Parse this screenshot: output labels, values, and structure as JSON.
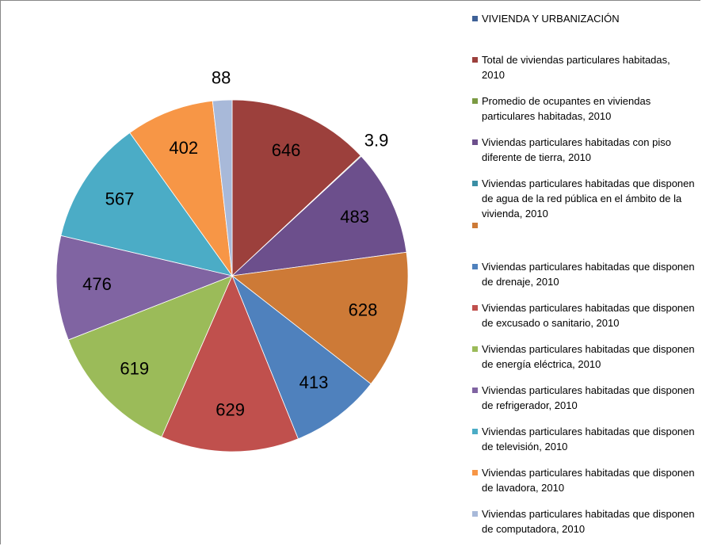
{
  "chart_data": {
    "type": "pie",
    "categories": [
      "VIVIENDA Y URBANIZACIÓN",
      "Total de viviendas particulares habitadas, 2010",
      "Promedio de ocupantes en viviendas particulares habitadas, 2010",
      "Viviendas particulares habitadas con piso diferente de tierra, 2010",
      "Viviendas particulares habitadas que disponen de agua de la red pública en el ámbito de la vivienda, 2010",
      null,
      "Viviendas particulares habitadas que disponen de drenaje, 2010",
      "Viviendas particulares habitadas que disponen de excusado o sanitario, 2010",
      "Viviendas particulares habitadas que disponen de energía eléctrica, 2010",
      "Viviendas particulares habitadas que disponen de refrigerador, 2010",
      "Viviendas particulares habitadas que disponen de televisión, 2010",
      " Viviendas particulares habitadas que disponen de lavadora, 2010",
      "Viviendas particulares habitadas que disponen de computadora, 2010"
    ],
    "values": [
      null,
      646,
      3.9,
      483,
      null,
      628,
      413,
      629,
      619,
      476,
      567,
      402,
      88
    ],
    "colors": [
      "#3e6197",
      "#9c403c",
      "#7b9a43",
      "#6c4f8c",
      "#3b8ea5",
      "#cd7a37",
      "#4f81bd",
      "#c0504d",
      "#9bbb59",
      "#8064a2",
      "#4bacc6",
      "#f79646",
      "#a8b9d9"
    ],
    "legend": "right"
  }
}
